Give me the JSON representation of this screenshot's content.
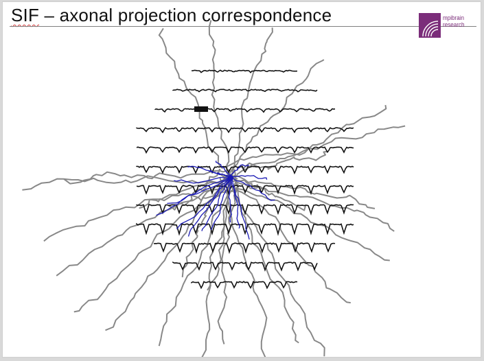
{
  "slide": {
    "title_abbr": "SIF",
    "title_rest": " – axonal projection correspondence"
  },
  "logo": {
    "line1": "mpibrain",
    "line2": "research",
    "color": "#7b2d7a"
  },
  "figure": {
    "trace_color": "#111111",
    "axon_color": "#888888",
    "dendrite_color": "#1a1ab4",
    "trace_rows": 12
  }
}
